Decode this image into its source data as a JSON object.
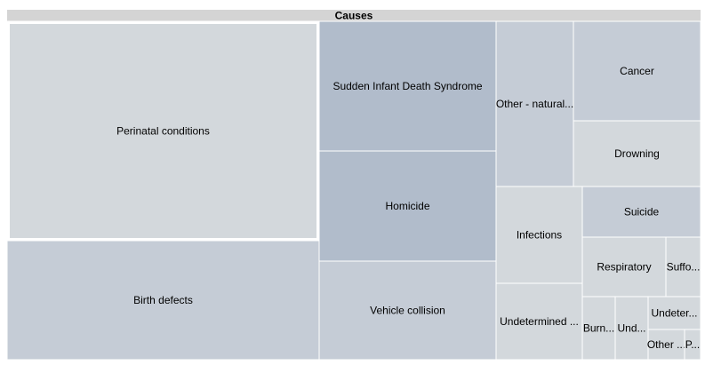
{
  "chart_data": {
    "type": "treemap",
    "title": "Causes",
    "colors": {
      "header": "#d4d4d4",
      "cell_light": "#d3d8dc",
      "cell_mid": "#c5ccd6",
      "cell_dark": "#b1bccb",
      "cell_border": "#ffffff"
    },
    "nodes": [
      {
        "name": "Perinatal conditions",
        "label": "Perinatal conditions",
        "shade": "light",
        "highlighted": true
      },
      {
        "name": "Birth defects",
        "label": "Birth defects",
        "shade": "mid"
      },
      {
        "name": "Sudden Infant Death Syndrome",
        "label": "Sudden Infant Death Syndrome",
        "shade": "dark"
      },
      {
        "name": "Homicide",
        "label": "Homicide",
        "shade": "dark"
      },
      {
        "name": "Vehicle collision",
        "label": "Vehicle collision",
        "shade": "mid"
      },
      {
        "name": "Other - natural",
        "label": "Other - natural...",
        "shade": "mid"
      },
      {
        "name": "Cancer",
        "label": "Cancer",
        "shade": "mid"
      },
      {
        "name": "Drowning",
        "label": "Drowning",
        "shade": "light"
      },
      {
        "name": "Infections",
        "label": "Infections",
        "shade": "light"
      },
      {
        "name": "Suicide",
        "label": "Suicide",
        "shade": "mid"
      },
      {
        "name": "Undetermined",
        "label": "Undetermined ...",
        "shade": "light"
      },
      {
        "name": "Respiratory",
        "label": "Respiratory",
        "shade": "light"
      },
      {
        "name": "Suffocation",
        "label": "Suffo...",
        "shade": "light"
      },
      {
        "name": "Burns",
        "label": "Burn...",
        "shade": "light"
      },
      {
        "name": "Undetermined 2",
        "label": "Und...",
        "shade": "light"
      },
      {
        "name": "Undetermined 3",
        "label": "Undeter...",
        "shade": "light"
      },
      {
        "name": "Other",
        "label": "Other ...",
        "shade": "light"
      },
      {
        "name": "P",
        "label": "P...",
        "shade": "light"
      }
    ]
  }
}
